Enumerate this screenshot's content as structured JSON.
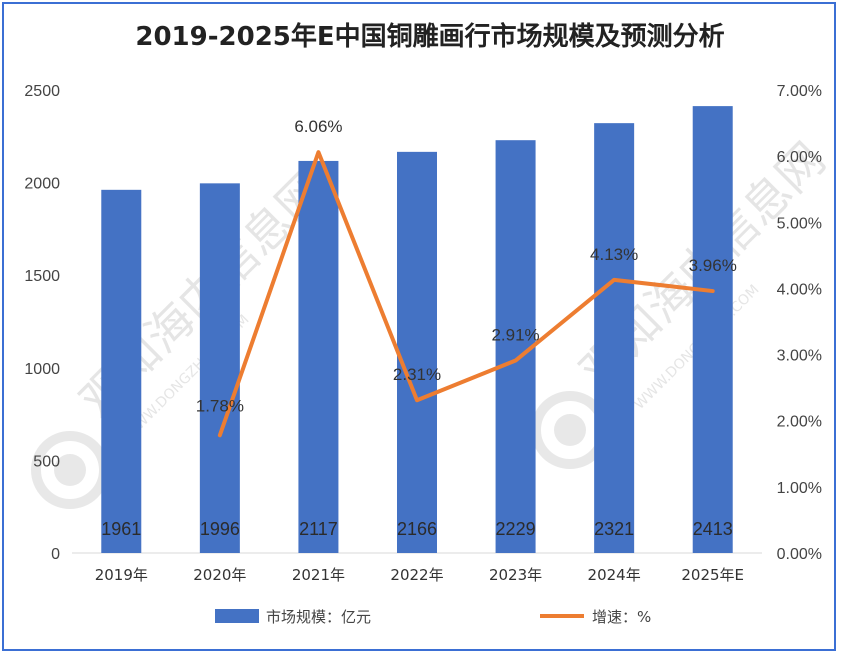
{
  "chart_data": {
    "type": "bar",
    "title": "2019-2025年E中国铜雕画行市场规模及预测分析",
    "categories": [
      "2019年",
      "2020年",
      "2021年",
      "2022年",
      "2023年",
      "2024年",
      "2025年E"
    ],
    "series": [
      {
        "name": "市场规模：亿元",
        "type": "bar",
        "axis": "left",
        "color": "#4472c4",
        "values": [
          1961,
          1996,
          2117,
          2166,
          2229,
          2321,
          2413
        ]
      },
      {
        "name": "增速：%",
        "type": "line",
        "axis": "right",
        "color": "#ed7d31",
        "values": [
          null,
          1.78,
          6.06,
          2.31,
          2.91,
          4.13,
          3.96
        ],
        "labels": [
          "",
          "1.78%",
          "6.06%",
          "2.31%",
          "2.91%",
          "4.13%",
          "3.96%"
        ]
      }
    ],
    "y_left": {
      "min": 0,
      "max": 2500,
      "ticks": [
        "0",
        "500",
        "1000",
        "1500",
        "2000",
        "2500"
      ]
    },
    "y_right": {
      "min": 0,
      "max": 7,
      "ticks": [
        "0.00%",
        "1.00%",
        "2.00%",
        "3.00%",
        "4.00%",
        "5.00%",
        "6.00%",
        "7.00%"
      ]
    },
    "legend": {
      "position": "bottom"
    },
    "grid": false
  },
  "watermark": {
    "cn": "观知海内信息网",
    "en": "WWW.DONGZHIHB.COM"
  }
}
